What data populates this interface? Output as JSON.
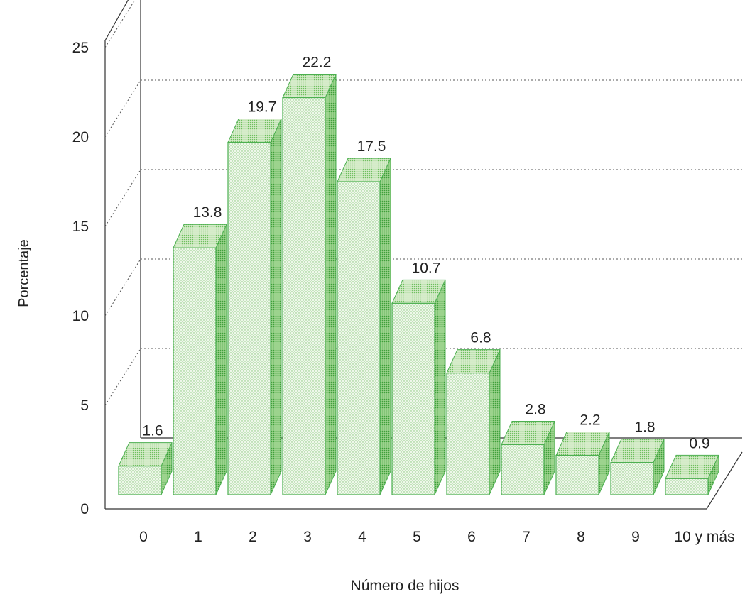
{
  "chart_data": {
    "type": "bar",
    "style": "3d",
    "categories": [
      "0",
      "1",
      "2",
      "3",
      "4",
      "5",
      "6",
      "7",
      "8",
      "9",
      "10 y más"
    ],
    "values": [
      1.6,
      13.8,
      19.7,
      22.2,
      17.5,
      10.7,
      6.8,
      2.8,
      2.2,
      1.8,
      0.9
    ],
    "value_labels": [
      "1.6",
      "13.8",
      "19.7",
      "22.2",
      "17.5",
      "10.7",
      "6.8",
      "2.8",
      "2.2",
      "1.8",
      "0.9"
    ],
    "xlabel": "Número de hijos",
    "ylabel": "Porcentaje",
    "yticks": [
      "0",
      "5",
      "10",
      "15",
      "20",
      "25"
    ],
    "ylim": [
      0,
      25
    ],
    "grid": true,
    "legend": "none",
    "colors": {
      "front": "#eaf5e4",
      "top": "#cfe9c2",
      "side": "#8fce7e",
      "edge": "#4caf50"
    }
  }
}
